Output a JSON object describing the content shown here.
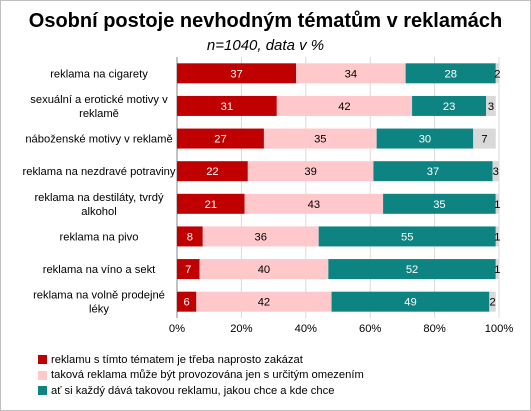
{
  "chart_data": {
    "type": "bar",
    "orientation": "horizontal",
    "stacked": true,
    "title": "Osobní postoje  nevhodným tématům v reklamách",
    "subtitle": "n=1040, data v %",
    "categories": [
      [
        "reklama na cigarety"
      ],
      [
        "sexuální a erotické motivy v",
        "reklamě"
      ],
      [
        "náboženské motivy v reklamě"
      ],
      [
        "reklama na nezdravé potraviny"
      ],
      [
        "reklama na destiláty, tvrdý",
        "alkohol"
      ],
      [
        "reklama na pivo"
      ],
      [
        "reklama na víno a sekt"
      ],
      [
        "reklama na volně prodejné",
        "léky"
      ]
    ],
    "series": [
      {
        "name": "reklamu s tímto tématem je třeba naprosto zakázat",
        "color": "#c00000",
        "label_color": "#ffffff",
        "values": [
          37,
          31,
          27,
          22,
          21,
          8,
          7,
          6
        ]
      },
      {
        "name": "taková reklama může být provozována jen s určitým omezením",
        "color": "#ffc9cc",
        "label_color": "#000000",
        "values": [
          34,
          42,
          35,
          39,
          43,
          36,
          40,
          42
        ]
      },
      {
        "name": "ať si každý dává takovou reklamu, jakou chce a kde chce",
        "color": "#0e8482",
        "label_color": "#ffffff",
        "values": [
          28,
          23,
          30,
          37,
          35,
          55,
          52,
          49
        ]
      },
      {
        "name": "",
        "color": "#d9d9d9",
        "label_color": "#000000",
        "values": [
          2,
          3,
          7,
          3,
          1,
          1,
          1,
          2
        ]
      }
    ],
    "xlim": [
      0,
      100
    ],
    "xticks": [
      "0%",
      "20%",
      "40%",
      "60%",
      "80%",
      "100%"
    ],
    "grid": true,
    "legend_position": "bottom"
  }
}
